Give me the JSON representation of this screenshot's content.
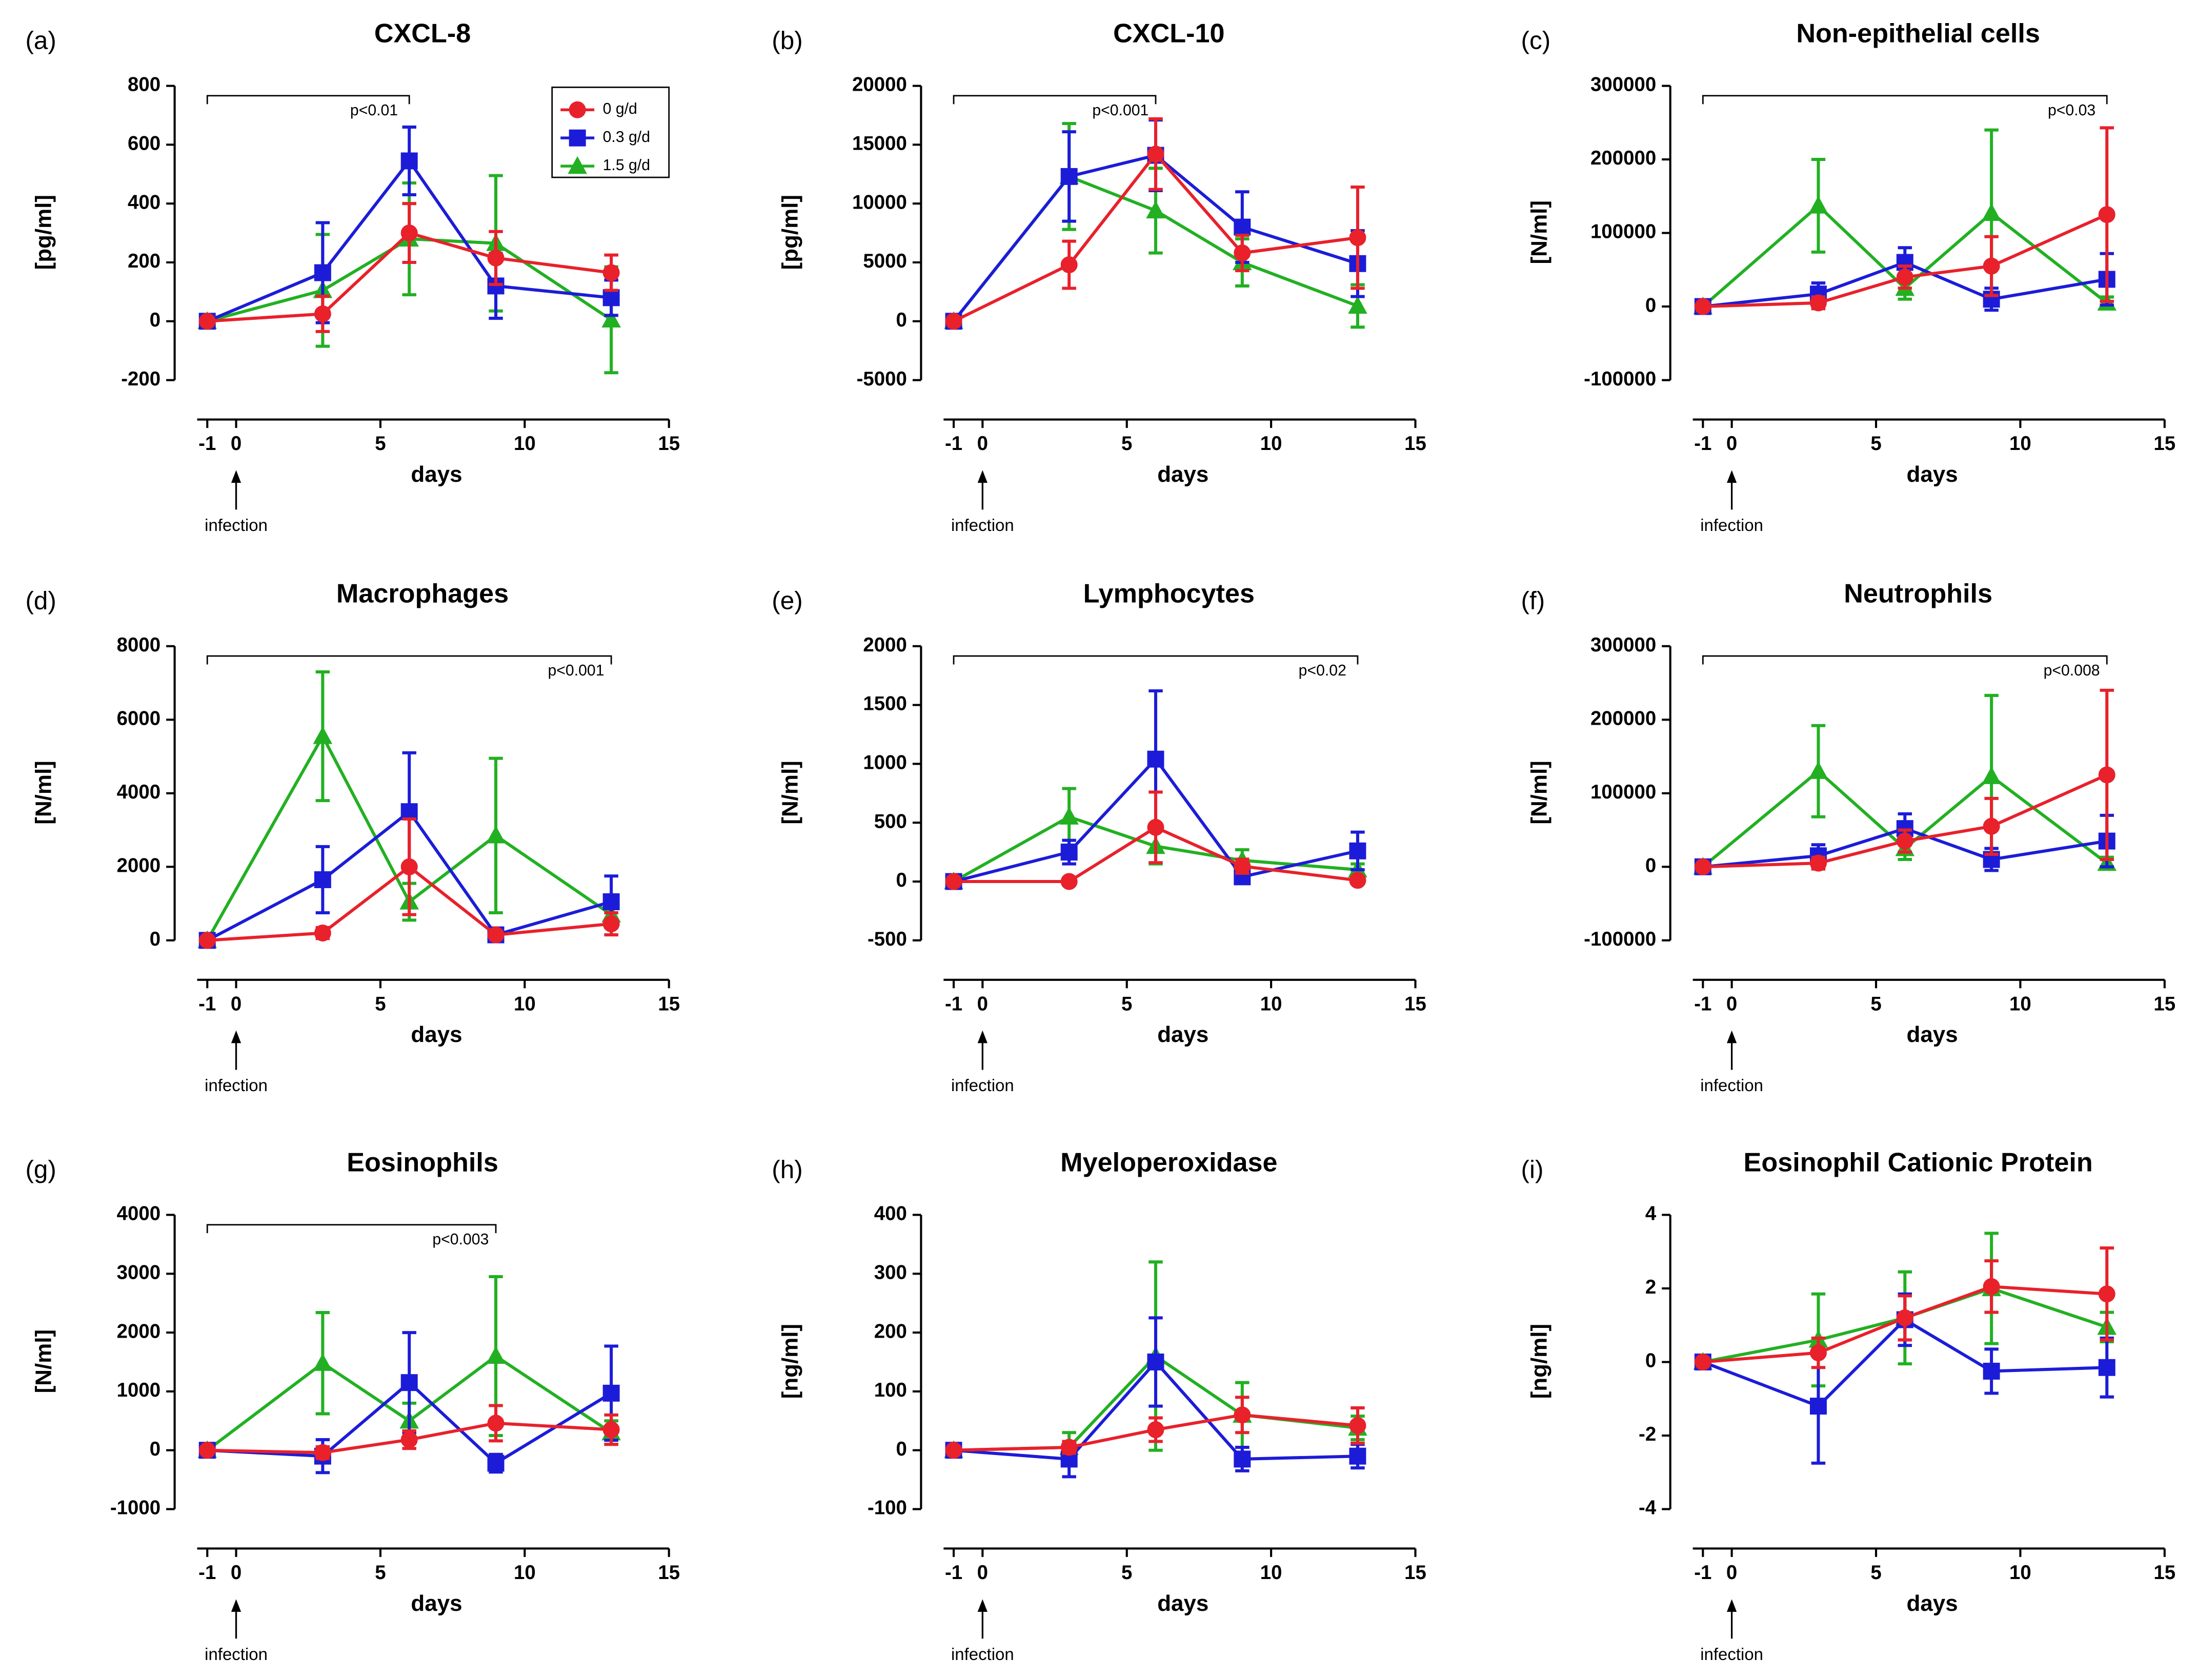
{
  "chart_data": [
    {
      "type": "line",
      "panel": "(a)",
      "title": "CXCL-8",
      "y_label": "[pg/ml]",
      "x_label": "days",
      "annotation": "infection",
      "xlim": [
        -1.35,
        15
      ],
      "xticks": [
        -1,
        0,
        5,
        10,
        15
      ],
      "ylim": [
        -200,
        800
      ],
      "yticks": [
        -200,
        0,
        200,
        400,
        600,
        800
      ],
      "bracket": {
        "label": "p<0.01",
        "x": [
          -1,
          6
        ]
      },
      "legend": "upper right",
      "x": [
        -1,
        3,
        6,
        9,
        13
      ],
      "series": [
        {
          "name": "0 g/d",
          "color": "#e8212b",
          "marker": "circle",
          "values": [
            0,
            25,
            300,
            215,
            165
          ],
          "errors": [
            10,
            60,
            100,
            90,
            60
          ]
        },
        {
          "name": "0.3 g/d",
          "color": "#1c1cd8",
          "marker": "square",
          "values": [
            0,
            165,
            545,
            120,
            80
          ],
          "errors": [
            10,
            170,
            115,
            110,
            60
          ]
        },
        {
          "name": "1.5 g/d",
          "color": "#22b022",
          "marker": "triangle",
          "values": [
            0,
            105,
            280,
            265,
            5
          ],
          "errors": [
            10,
            190,
            190,
            230,
            180
          ]
        }
      ]
    },
    {
      "type": "line",
      "panel": "(b)",
      "title": "CXCL-10",
      "y_label": "[pg/ml]",
      "x_label": "days",
      "annotation": "infection",
      "xlim": [
        -1.35,
        15
      ],
      "xticks": [
        -1,
        0,
        5,
        10,
        15
      ],
      "ylim": [
        -5000,
        20000
      ],
      "yticks": [
        -5000,
        0,
        5000,
        10000,
        15000,
        20000
      ],
      "bracket": {
        "label": "p<0.001",
        "x": [
          -1,
          6
        ]
      },
      "x": [
        -1,
        3,
        6,
        9,
        13
      ],
      "series": [
        {
          "color": "#e8212b",
          "marker": "circle",
          "values": [
            0,
            4800,
            14200,
            5800,
            7100
          ],
          "errors": [
            200,
            2000,
            3000,
            1500,
            4300
          ]
        },
        {
          "color": "#1c1cd8",
          "marker": "square",
          "values": [
            0,
            12300,
            14100,
            8000,
            4900
          ],
          "errors": [
            200,
            3800,
            3000,
            3000,
            2800
          ]
        },
        {
          "color": "#22b022",
          "marker": "triangle",
          "values": [
            0,
            12300,
            9400,
            5000,
            1300
          ],
          "errors": [
            200,
            4500,
            3600,
            2000,
            1800
          ]
        }
      ]
    },
    {
      "type": "line",
      "panel": "(c)",
      "title": "Non-epithelial cells",
      "y_label": "[N/ml]",
      "x_label": "days",
      "annotation": "infection",
      "xlim": [
        -1.35,
        15
      ],
      "xticks": [
        -1,
        0,
        5,
        10,
        15
      ],
      "ylim": [
        -100000,
        300000
      ],
      "yticks": [
        -100000,
        0,
        100000,
        200000,
        300000
      ],
      "bracket": {
        "label": "p<0.03",
        "x": [
          -1,
          13
        ]
      },
      "x": [
        -1,
        3,
        6,
        9,
        13
      ],
      "series": [
        {
          "color": "#e8212b",
          "marker": "circle",
          "values": [
            0,
            5000,
            40000,
            55000,
            125000
          ],
          "errors": [
            2000,
            8000,
            15000,
            40000,
            118000
          ]
        },
        {
          "color": "#1c1cd8",
          "marker": "square",
          "values": [
            0,
            17000,
            60000,
            10000,
            37000
          ],
          "errors": [
            2000,
            15000,
            20000,
            15000,
            35000
          ]
        },
        {
          "color": "#22b022",
          "marker": "triangle",
          "values": [
            0,
            137000,
            25000,
            127000,
            5000
          ],
          "errors": [
            2000,
            63000,
            15000,
            113000,
            8000
          ]
        }
      ]
    },
    {
      "type": "line",
      "panel": "(d)",
      "title": "Macrophages",
      "y_label": "[N/ml]",
      "x_label": "days",
      "annotation": "infection",
      "xlim": [
        -1.35,
        15
      ],
      "xticks": [
        -1,
        0,
        5,
        10,
        15
      ],
      "ylim": [
        0,
        8000
      ],
      "yticks": [
        0,
        2000,
        4000,
        6000,
        8000
      ],
      "bracket": {
        "label": "p<0.001",
        "x": [
          -1,
          13
        ]
      },
      "x": [
        -1,
        3,
        6,
        9,
        13
      ],
      "series": [
        {
          "color": "#e8212b",
          "marker": "circle",
          "values": [
            0,
            200,
            2000,
            150,
            450
          ],
          "errors": [
            50,
            150,
            1300,
            100,
            300
          ]
        },
        {
          "color": "#1c1cd8",
          "marker": "square",
          "values": [
            0,
            1650,
            3500,
            150,
            1050
          ],
          "errors": [
            50,
            900,
            1600,
            100,
            700
          ]
        },
        {
          "color": "#22b022",
          "marker": "triangle",
          "values": [
            0,
            5550,
            1050,
            2850,
            700
          ],
          "errors": [
            50,
            1750,
            500,
            2100,
            200
          ]
        }
      ]
    },
    {
      "type": "line",
      "panel": "(e)",
      "title": "Lymphocytes",
      "y_label": "[N/ml]",
      "x_label": "days",
      "annotation": "infection",
      "xlim": [
        -1.35,
        15
      ],
      "xticks": [
        -1,
        0,
        5,
        10,
        15
      ],
      "ylim": [
        -500,
        2000
      ],
      "yticks": [
        -500,
        0,
        500,
        1000,
        1500,
        2000
      ],
      "bracket": {
        "label": "p<0.02",
        "x": [
          -1,
          13
        ]
      },
      "x": [
        -1,
        3,
        6,
        9,
        13
      ],
      "series": [
        {
          "color": "#e8212b",
          "marker": "circle",
          "values": [
            0,
            0,
            460,
            130,
            10
          ],
          "errors": [
            10,
            10,
            300,
            60,
            20
          ]
        },
        {
          "color": "#1c1cd8",
          "marker": "square",
          "values": [
            0,
            250,
            1040,
            40,
            260
          ],
          "errors": [
            10,
            100,
            580,
            40,
            160
          ]
        },
        {
          "color": "#22b022",
          "marker": "triangle",
          "values": [
            0,
            550,
            300,
            180,
            100
          ],
          "errors": [
            10,
            240,
            150,
            90,
            50
          ]
        }
      ]
    },
    {
      "type": "line",
      "panel": "(f)",
      "title": "Neutrophils",
      "y_label": "[N/ml]",
      "x_label": "days",
      "annotation": "infection",
      "xlim": [
        -1.35,
        15
      ],
      "xticks": [
        -1,
        0,
        5,
        10,
        15
      ],
      "ylim": [
        -100000,
        300000
      ],
      "yticks": [
        -100000,
        0,
        100000,
        200000,
        300000
      ],
      "bracket": {
        "label": "p<0.008",
        "x": [
          -1,
          13
        ]
      },
      "x": [
        -1,
        3,
        6,
        9,
        13
      ],
      "series": [
        {
          "color": "#e8212b",
          "marker": "circle",
          "values": [
            0,
            5000,
            35000,
            55000,
            125000
          ],
          "errors": [
            2000,
            8000,
            15000,
            38000,
            115000
          ]
        },
        {
          "color": "#1c1cd8",
          "marker": "square",
          "values": [
            0,
            15000,
            52000,
            10000,
            35000
          ],
          "errors": [
            2000,
            15000,
            20000,
            15000,
            35000
          ]
        },
        {
          "color": "#22b022",
          "marker": "triangle",
          "values": [
            0,
            130000,
            25000,
            123000,
            5000
          ],
          "errors": [
            2000,
            62000,
            15000,
            110000,
            8000
          ]
        }
      ]
    },
    {
      "type": "line",
      "panel": "(g)",
      "title": "Eosinophils",
      "y_label": "[N/ml]",
      "x_label": "days",
      "annotation": "infection",
      "xlim": [
        -1.35,
        15
      ],
      "xticks": [
        -1,
        0,
        5,
        10,
        15
      ],
      "ylim": [
        -1000,
        4000
      ],
      "yticks": [
        -1000,
        0,
        1000,
        2000,
        3000,
        4000
      ],
      "bracket": {
        "label": "p<0.003",
        "x": [
          -1,
          9
        ]
      },
      "x": [
        -1,
        3,
        6,
        9,
        13
      ],
      "series": [
        {
          "color": "#e8212b",
          "marker": "circle",
          "values": [
            0,
            -40,
            180,
            460,
            350
          ],
          "errors": [
            20,
            100,
            150,
            300,
            250
          ]
        },
        {
          "color": "#1c1cd8",
          "marker": "square",
          "values": [
            0,
            -100,
            1150,
            -220,
            970
          ],
          "errors": [
            20,
            280,
            850,
            150,
            800
          ]
        },
        {
          "color": "#22b022",
          "marker": "triangle",
          "values": [
            0,
            1480,
            500,
            1600,
            300
          ],
          "errors": [
            20,
            860,
            300,
            1350,
            200
          ]
        }
      ]
    },
    {
      "type": "line",
      "panel": "(h)",
      "title": "Myeloperoxidase",
      "y_label": "[ng/ml]",
      "x_label": "days",
      "annotation": "infection",
      "xlim": [
        -1.35,
        15
      ],
      "xticks": [
        -1,
        0,
        5,
        10,
        15
      ],
      "ylim": [
        -100,
        400
      ],
      "yticks": [
        -100,
        0,
        100,
        200,
        300,
        400
      ],
      "x": [
        -1,
        3,
        6,
        9,
        13
      ],
      "series": [
        {
          "color": "#e8212b",
          "marker": "circle",
          "values": [
            0,
            5,
            35,
            60,
            42
          ],
          "errors": [
            3,
            10,
            20,
            30,
            30
          ]
        },
        {
          "color": "#1c1cd8",
          "marker": "square",
          "values": [
            0,
            -15,
            150,
            -15,
            -10
          ],
          "errors": [
            3,
            30,
            75,
            20,
            20
          ]
        },
        {
          "color": "#22b022",
          "marker": "triangle",
          "values": [
            0,
            5,
            160,
            60,
            38
          ],
          "errors": [
            3,
            25,
            160,
            55,
            20
          ]
        }
      ]
    },
    {
      "type": "line",
      "panel": "(i)",
      "title": "Eosinophil Cationic Protein",
      "y_label": "[ng/ml]",
      "x_label": "days",
      "annotation": "infection",
      "xlim": [
        -1.35,
        15
      ],
      "xticks": [
        -1,
        0,
        5,
        10,
        15
      ],
      "ylim": [
        -4,
        4
      ],
      "yticks": [
        -4,
        -2,
        0,
        2,
        4
      ],
      "x": [
        -1,
        3,
        6,
        9,
        13
      ],
      "series": [
        {
          "color": "#e8212b",
          "marker": "circle",
          "values": [
            0,
            0.25,
            1.2,
            2.05,
            1.85
          ],
          "errors": [
            0.05,
            0.4,
            0.6,
            0.7,
            1.25
          ]
        },
        {
          "color": "#1c1cd8",
          "marker": "square",
          "values": [
            0,
            -1.2,
            1.15,
            -0.25,
            -0.15
          ],
          "errors": [
            0.05,
            1.55,
            0.7,
            0.6,
            0.8
          ]
        },
        {
          "color": "#22b022",
          "marker": "triangle",
          "values": [
            0,
            0.6,
            1.2,
            2.0,
            0.95
          ],
          "errors": [
            0.05,
            1.25,
            1.25,
            1.5,
            0.4
          ]
        }
      ]
    }
  ]
}
